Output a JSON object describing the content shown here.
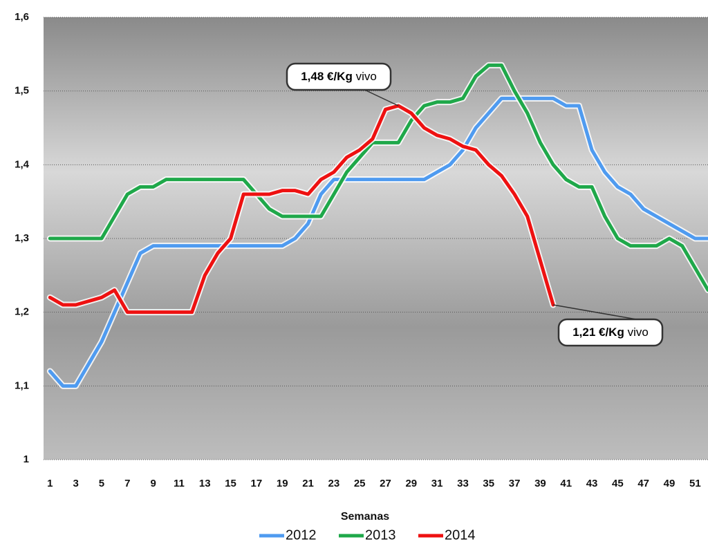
{
  "chart_data": {
    "type": "line",
    "x_label": "Semanas",
    "x": [
      1,
      2,
      3,
      4,
      5,
      6,
      7,
      8,
      9,
      10,
      11,
      12,
      13,
      14,
      15,
      16,
      17,
      18,
      19,
      20,
      21,
      22,
      23,
      24,
      25,
      26,
      27,
      28,
      29,
      30,
      31,
      32,
      33,
      34,
      35,
      36,
      37,
      38,
      39,
      40,
      41,
      42,
      43,
      44,
      45,
      46,
      47,
      48,
      49,
      50,
      51,
      52
    ],
    "xlim": [
      0.5,
      52
    ],
    "xticks": [
      1,
      3,
      5,
      7,
      9,
      11,
      13,
      15,
      17,
      19,
      21,
      23,
      25,
      27,
      29,
      31,
      33,
      35,
      37,
      39,
      41,
      43,
      45,
      47,
      49,
      51
    ],
    "ylim": [
      1,
      1.6
    ],
    "yticks": [
      1,
      {
        "value": 1.1,
        "label": "1,1"
      },
      {
        "value": 1.2,
        "label": "1,2"
      },
      {
        "value": 1.3,
        "label": "1,3"
      },
      {
        "value": 1.4,
        "label": "1,4"
      },
      {
        "value": 1.5,
        "label": "1,5"
      },
      {
        "value": 1.6,
        "label": "1,6"
      }
    ],
    "grid": true,
    "legend": "bottom",
    "series": [
      {
        "name": "2012",
        "color": "#4f9bf0",
        "values": [
          1.12,
          1.1,
          1.1,
          1.13,
          1.16,
          1.2,
          1.24,
          1.28,
          1.29,
          1.29,
          1.29,
          1.29,
          1.29,
          1.29,
          1.29,
          1.29,
          1.29,
          1.29,
          1.29,
          1.3,
          1.32,
          1.36,
          1.38,
          1.38,
          1.38,
          1.38,
          1.38,
          1.38,
          1.38,
          1.38,
          1.39,
          1.4,
          1.42,
          1.45,
          1.47,
          1.49,
          1.49,
          1.49,
          1.49,
          1.49,
          1.48,
          1.48,
          1.42,
          1.39,
          1.37,
          1.36,
          1.34,
          1.33,
          1.32,
          1.31,
          1.3,
          1.3
        ]
      },
      {
        "name": "2013",
        "color": "#1fa84a",
        "values": [
          1.3,
          1.3,
          1.3,
          1.3,
          1.3,
          1.33,
          1.36,
          1.37,
          1.37,
          1.38,
          1.38,
          1.38,
          1.38,
          1.38,
          1.38,
          1.38,
          1.36,
          1.34,
          1.33,
          1.33,
          1.33,
          1.33,
          1.36,
          1.39,
          1.41,
          1.43,
          1.43,
          1.43,
          1.46,
          1.48,
          1.485,
          1.485,
          1.49,
          1.52,
          1.535,
          1.535,
          1.5,
          1.47,
          1.43,
          1.4,
          1.38,
          1.37,
          1.37,
          1.33,
          1.3,
          1.29,
          1.29,
          1.29,
          1.3,
          1.29,
          1.26,
          1.23
        ]
      },
      {
        "name": "2014",
        "color": "#ee1111",
        "values": [
          1.22,
          1.21,
          1.21,
          1.215,
          1.22,
          1.23,
          1.2,
          1.2,
          1.2,
          1.2,
          1.2,
          1.2,
          1.25,
          1.28,
          1.3,
          1.36,
          1.36,
          1.36,
          1.365,
          1.365,
          1.36,
          1.38,
          1.39,
          1.41,
          1.42,
          1.435,
          1.475,
          1.48,
          1.47,
          1.45,
          1.44,
          1.435,
          1.425,
          1.42,
          1.4,
          1.385,
          1.36,
          1.33,
          1.27,
          1.21,
          null,
          null,
          null,
          null,
          null,
          null,
          null,
          null,
          null,
          null,
          null,
          null
        ]
      }
    ],
    "annotations": [
      {
        "text": "1,48 €/Kg",
        "suffix": "vivo",
        "x": 28,
        "y": 1.48
      },
      {
        "text": "1,21 €/Kg",
        "suffix": "vivo",
        "x": 40,
        "y": 1.21
      }
    ]
  }
}
